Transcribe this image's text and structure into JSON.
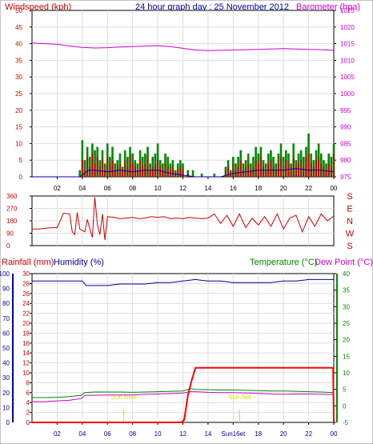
{
  "header": {
    "wind_label": "Windspeed (kph)",
    "graph_title": "24 hour graph day : 25 November 2012",
    "baro_label": "Barometer (hpa)"
  },
  "lower_header": {
    "rain_label": "Rainfall (mm)",
    "humidity_label": "Humidity (%)",
    "temp_label": "Temperature (°C)",
    "dew_label": "Dew Point (°C)"
  },
  "events": {
    "sunrise": "Sun Rise",
    "sunset": "Sun Set"
  },
  "colors": {
    "wind": "#cc0000",
    "gust": "#008800",
    "avg_wind": "#0000aa",
    "baro": "#cc00cc",
    "direction": "#cc0000",
    "humidity": "#000099",
    "temperature": "#008800",
    "dewpoint": "#cc00cc",
    "rain": "#ff0000",
    "sun": "#dddd00"
  },
  "chart_data": [
    {
      "type": "bar",
      "title": "24 hour graph day : 25 November 2012",
      "xlabel": "",
      "ylabel": "Windspeed (kph)",
      "y2label": "Barometer (hpa)",
      "x_range": [
        0,
        24
      ],
      "x_ticks": [
        "02",
        "04",
        "06",
        "08",
        "10",
        "12",
        "14",
        "16",
        "18",
        "20",
        "22",
        "00"
      ],
      "ylim": [
        0,
        50
      ],
      "y_ticks": [
        0,
        5,
        10,
        15,
        20,
        25,
        30,
        35,
        40,
        45,
        50
      ],
      "y2lim": [
        975,
        1025
      ],
      "y2_ticks": [
        975,
        980,
        985,
        990,
        995,
        1000,
        1005,
        1010,
        1015,
        1020,
        1025
      ],
      "grid": true,
      "series": [
        {
          "name": "Barometer (hpa)",
          "type": "line",
          "x": [
            0,
            1,
            2,
            3,
            4,
            5,
            6,
            7,
            8,
            9,
            10,
            11,
            12,
            13,
            14,
            15,
            16,
            17,
            18,
            19,
            20,
            21,
            22,
            23,
            24
          ],
          "values": [
            1015.2,
            1015.0,
            1014.8,
            1014.3,
            1013.9,
            1013.7,
            1013.8,
            1014.0,
            1014.1,
            1014.3,
            1014.4,
            1014.1,
            1013.6,
            1013.1,
            1012.9,
            1013.0,
            1013.1,
            1013.2,
            1013.3,
            1013.4,
            1013.5,
            1013.4,
            1013.3,
            1013.2,
            1013.0
          ]
        },
        {
          "name": "Windspeed (kph)",
          "type": "bar",
          "x": [
            0,
            1,
            2,
            3,
            3.8,
            4.0,
            4.2,
            4.4,
            4.6,
            4.8,
            5.0,
            5.2,
            5.4,
            5.6,
            5.8,
            6.0,
            6.2,
            6.4,
            6.6,
            6.8,
            7.0,
            7.2,
            7.4,
            7.6,
            7.8,
            8.0,
            8.2,
            8.4,
            8.6,
            8.8,
            9.0,
            9.2,
            9.4,
            9.6,
            9.8,
            10.0,
            10.2,
            10.4,
            10.6,
            10.8,
            11.0,
            11.2,
            11.4,
            11.6,
            11.8,
            12.0,
            12.4,
            12.8,
            13.5,
            14.5,
            15.4,
            15.6,
            15.8,
            16.0,
            16.2,
            16.4,
            16.6,
            16.8,
            17.0,
            17.2,
            17.4,
            17.6,
            17.8,
            18.0,
            18.2,
            18.4,
            18.6,
            18.8,
            19.0,
            19.2,
            19.4,
            19.6,
            19.8,
            20.0,
            20.2,
            20.4,
            20.6,
            20.8,
            21.0,
            21.2,
            21.4,
            21.6,
            21.8,
            22.0,
            22.2,
            22.4,
            22.6,
            22.8,
            23.0,
            23.2,
            23.4,
            23.6,
            23.8,
            24.0
          ],
          "values": [
            0,
            0,
            0,
            0,
            0,
            5,
            2,
            6,
            3,
            7,
            4,
            6,
            3,
            5,
            2,
            6,
            4,
            5,
            2,
            3,
            4,
            2,
            5,
            3,
            6,
            4,
            3,
            2,
            5,
            3,
            4,
            6,
            2,
            3,
            4,
            5,
            3,
            2,
            4,
            3,
            2,
            3,
            1,
            2,
            3,
            2,
            1,
            0,
            0,
            0,
            2,
            3,
            1,
            4,
            2,
            3,
            5,
            2,
            3,
            4,
            2,
            3,
            5,
            4,
            6,
            3,
            2,
            4,
            5,
            3,
            2,
            4,
            6,
            3,
            5,
            4,
            2,
            6,
            3,
            4,
            5,
            3,
            6,
            7,
            4,
            3,
            5,
            6,
            4,
            3,
            2,
            4,
            3,
            7
          ]
        },
        {
          "name": "Gust (kph)",
          "type": "bar",
          "x": [
            0,
            1,
            2,
            3,
            3.8,
            4.0,
            4.2,
            4.4,
            4.6,
            4.8,
            5.0,
            5.2,
            5.4,
            5.6,
            5.8,
            6.0,
            6.2,
            6.4,
            6.6,
            6.8,
            7.0,
            7.2,
            7.4,
            7.6,
            7.8,
            8.0,
            8.2,
            8.4,
            8.6,
            8.8,
            9.0,
            9.2,
            9.4,
            9.6,
            9.8,
            10.0,
            10.2,
            10.4,
            10.6,
            10.8,
            11.0,
            11.2,
            11.4,
            11.6,
            11.8,
            12.0,
            12.4,
            12.8,
            13.5,
            14.5,
            15.4,
            15.6,
            15.8,
            16.0,
            16.2,
            16.4,
            16.6,
            16.8,
            17.0,
            17.2,
            17.4,
            17.6,
            17.8,
            18.0,
            18.2,
            18.4,
            18.6,
            18.8,
            19.0,
            19.2,
            19.4,
            19.6,
            19.8,
            20.0,
            20.2,
            20.4,
            20.6,
            20.8,
            21.0,
            21.2,
            21.4,
            21.6,
            21.8,
            22.0,
            22.2,
            22.4,
            22.6,
            22.8,
            23.0,
            23.2,
            23.4,
            23.6,
            23.8,
            24.0
          ],
          "values": [
            0,
            0,
            0,
            0,
            2,
            11,
            5,
            9,
            6,
            10,
            8,
            9,
            5,
            8,
            4,
            10,
            6,
            9,
            4,
            5,
            7,
            3,
            8,
            6,
            9,
            7,
            5,
            4,
            8,
            6,
            7,
            9,
            4,
            6,
            7,
            10,
            5,
            4,
            7,
            6,
            4,
            5,
            2,
            4,
            5,
            4,
            2,
            2,
            1,
            1,
            3,
            5,
            2,
            6,
            4,
            6,
            8,
            4,
            5,
            7,
            4,
            6,
            9,
            7,
            9,
            5,
            4,
            7,
            8,
            6,
            4,
            7,
            10,
            6,
            8,
            7,
            4,
            10,
            5,
            7,
            8,
            6,
            9,
            13,
            7,
            5,
            8,
            10,
            7,
            5,
            4,
            7,
            6,
            10
          ]
        },
        {
          "name": "Average wind (kph)",
          "type": "line",
          "x": [
            0,
            3.8,
            4.5,
            5,
            6,
            7,
            8,
            9,
            10,
            11,
            12,
            13,
            14,
            15,
            16,
            17,
            18,
            19,
            20,
            21,
            22,
            23,
            24
          ],
          "values": [
            0,
            0,
            2,
            2,
            1.5,
            2,
            1.5,
            2,
            2,
            1,
            0.5,
            0,
            0,
            0,
            1,
            1.5,
            2,
            2,
            2,
            2.5,
            2,
            2,
            1.5
          ]
        }
      ]
    },
    {
      "type": "line",
      "title": "",
      "xlabel": "",
      "ylabel": "",
      "ylim": [
        0,
        360
      ],
      "y_ticks": [
        0,
        90,
        180,
        270,
        360
      ],
      "compass_labels": [
        "S",
        "E",
        "N",
        "W",
        "S"
      ],
      "grid": true,
      "series": [
        {
          "name": "Wind direction",
          "x": [
            0,
            0.5,
            1,
            1.5,
            2,
            2.5,
            3,
            3.2,
            3.4,
            3.6,
            3.8,
            4.0,
            4.2,
            4.4,
            4.6,
            4.8,
            5.0,
            5.2,
            5.4,
            5.6,
            5.8,
            6.0,
            6.5,
            7,
            7.5,
            8,
            8.5,
            9,
            9.5,
            10,
            10.5,
            11,
            11.5,
            12,
            12.5,
            13,
            13.5,
            14,
            14.5,
            15,
            15.5,
            16,
            16.5,
            17,
            17.5,
            18,
            18.5,
            19,
            19.5,
            20,
            20.5,
            21,
            21.5,
            22,
            22.5,
            23,
            23.5,
            24
          ],
          "values": [
            120,
            120,
            125,
            130,
            130,
            235,
            230,
            100,
            80,
            240,
            120,
            110,
            100,
            190,
            120,
            60,
            350,
            150,
            80,
            230,
            40,
            210,
            205,
            195,
            200,
            205,
            195,
            200,
            210,
            205,
            210,
            195,
            200,
            195,
            205,
            200,
            195,
            200,
            230,
            160,
            220,
            140,
            230,
            130,
            200,
            150,
            210,
            140,
            230,
            120,
            200,
            220,
            100,
            210,
            140,
            230,
            180,
            215
          ]
        }
      ]
    },
    {
      "type": "line",
      "title": "",
      "xlabel": "",
      "ylabel": "Rainfall (mm)",
      "y2label": "Temperature (°C)",
      "x_range": [
        0,
        24
      ],
      "x_ticks": [
        "02",
        "04",
        "06",
        "08",
        "10",
        "12",
        "14",
        "Sun16et",
        "18",
        "20",
        "22",
        "00"
      ],
      "ylim": [
        0,
        30
      ],
      "y_ticks": [
        0,
        2,
        4,
        6,
        8,
        10,
        12,
        14,
        16,
        18,
        20,
        22,
        24,
        26,
        28,
        30
      ],
      "humidity_ticks": [
        0,
        10,
        20,
        30,
        40,
        50,
        60,
        70,
        80,
        90,
        100
      ],
      "y2lim": [
        -5,
        40
      ],
      "y2_ticks": [
        -5,
        0,
        5,
        10,
        15,
        20,
        25,
        30,
        35,
        40
      ],
      "sunrise_hour": 7.3,
      "sunset_hour": 16.5,
      "grid": true,
      "series": [
        {
          "name": "Humidity (%)",
          "x": [
            0,
            1,
            2,
            3,
            4,
            4.3,
            5,
            6,
            7,
            8,
            9,
            10,
            11,
            12,
            13,
            14,
            15,
            16,
            17,
            18,
            19,
            20,
            21,
            22,
            23,
            24
          ],
          "values": [
            95,
            95,
            95,
            95,
            95,
            92,
            92,
            92,
            93,
            93,
            93,
            94,
            94,
            95,
            96,
            95,
            95,
            94,
            94,
            94,
            94,
            95,
            95,
            96,
            96,
            96
          ]
        },
        {
          "name": "Temperature (°C)",
          "x": [
            0,
            1,
            2,
            3,
            3.9,
            4.2,
            5,
            6,
            7,
            8,
            9,
            10,
            11,
            12,
            12.6,
            13,
            14,
            15,
            16,
            17,
            18,
            19,
            20,
            21,
            22,
            23,
            24
          ],
          "values": [
            2.5,
            2.5,
            2.6,
            2.8,
            3.2,
            4.0,
            4.2,
            4.2,
            4.2,
            4.1,
            4.2,
            4.3,
            4.4,
            4.5,
            5.2,
            5.0,
            4.9,
            4.8,
            4.8,
            4.7,
            4.6,
            4.5,
            4.5,
            4.4,
            4.3,
            4.2,
            4.0
          ]
        },
        {
          "name": "Dew Point (°C)",
          "x": [
            0,
            1,
            2,
            3,
            3.9,
            4.2,
            5,
            6,
            7,
            8,
            9,
            10,
            11,
            12,
            12.6,
            13,
            14,
            15,
            16,
            17,
            18,
            19,
            20,
            21,
            22,
            23,
            24
          ],
          "values": [
            1.3,
            1.3,
            1.5,
            1.7,
            2.2,
            3.2,
            3.2,
            3.3,
            3.3,
            3.3,
            3.5,
            3.6,
            3.7,
            3.9,
            4.3,
            4.3,
            4.1,
            4.0,
            4.0,
            3.9,
            3.8,
            3.6,
            3.5,
            3.6,
            3.6,
            3.5,
            3.4
          ]
        },
        {
          "name": "Rainfall (mm)",
          "x": [
            0,
            11.9,
            12.1,
            12.4,
            12.7,
            13.0,
            23.95,
            24.0
          ],
          "values": [
            0,
            0,
            0.5,
            5.5,
            8.5,
            11,
            11,
            0
          ]
        }
      ]
    }
  ]
}
